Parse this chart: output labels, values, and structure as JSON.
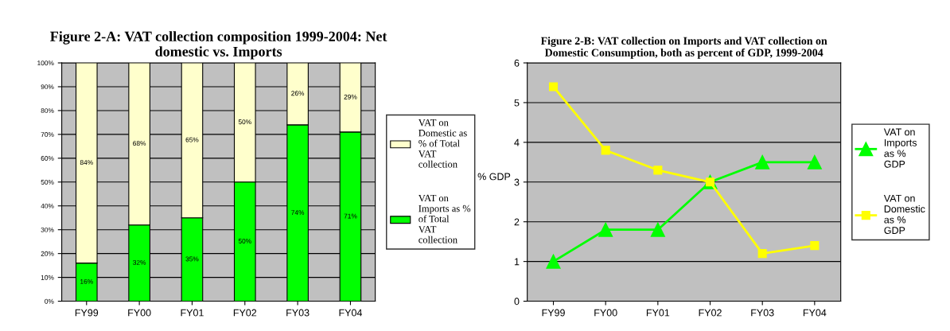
{
  "chart_data": [
    {
      "type": "bar",
      "title": "Figure 2-A: VAT collection composition 1999-2004: Net\ndomestic vs. Imports",
      "categories": [
        "FY99",
        "FY00",
        "FY01",
        "FY02",
        "FY03",
        "FY04"
      ],
      "stacked": true,
      "series": [
        {
          "name": "VAT on\nImports as %\nof Total\nVAT\ncollection",
          "color": "#00ff00",
          "values": [
            16,
            32,
            35,
            50,
            74,
            71
          ],
          "value_labels": [
            "16%",
            "32%",
            "35%",
            "50%",
            "74%",
            "71%"
          ]
        },
        {
          "name": "VAT on\nDomestic as\n% of Total\nVAT\ncollection",
          "color": "#ffffcc",
          "values": [
            84,
            68,
            65,
            50,
            26,
            29
          ],
          "value_labels": [
            "84%",
            "68%",
            "65%",
            "50%",
            "26%",
            "29%"
          ]
        }
      ],
      "ylim": [
        0,
        100
      ],
      "yticks": [
        {
          "value": 0,
          "label": "0%"
        },
        {
          "value": 10,
          "label": "10%"
        },
        {
          "value": 20,
          "label": "20%"
        },
        {
          "value": 30,
          "label": "30%"
        },
        {
          "value": 40,
          "label": "40%"
        },
        {
          "value": 50,
          "label": "50%"
        },
        {
          "value": 60,
          "label": "60%"
        },
        {
          "value": 70,
          "label": "70%"
        },
        {
          "value": 80,
          "label": "80%"
        },
        {
          "value": 90,
          "label": "90%"
        },
        {
          "value": 100,
          "label": "100%"
        }
      ],
      "grid": "y",
      "legend": "right"
    },
    {
      "type": "line",
      "title": "Figure 2-B: VAT collection on Imports and VAT collection on\nDomestic Consumption, both as percent of GDP, 1999-2004",
      "ylabel": "% GDP",
      "categories": [
        "FY99",
        "FY00",
        "FY01",
        "FY02",
        "FY03",
        "FY04"
      ],
      "series": [
        {
          "name": "VAT on\nImports\nas %\nGDP",
          "color": "#00ff00",
          "marker": "triangle",
          "values": [
            1.0,
            1.8,
            1.8,
            3.0,
            3.5,
            3.5
          ]
        },
        {
          "name": "VAT on\nDomestic\nas %\nGDP",
          "color": "#ffff00",
          "marker": "square",
          "values": [
            5.4,
            3.8,
            3.3,
            3.0,
            1.2,
            1.4
          ]
        }
      ],
      "ylim": [
        0,
        6
      ],
      "yticks": [
        0,
        1,
        2,
        3,
        4,
        5,
        6
      ],
      "grid": "y",
      "legend": "right"
    }
  ]
}
